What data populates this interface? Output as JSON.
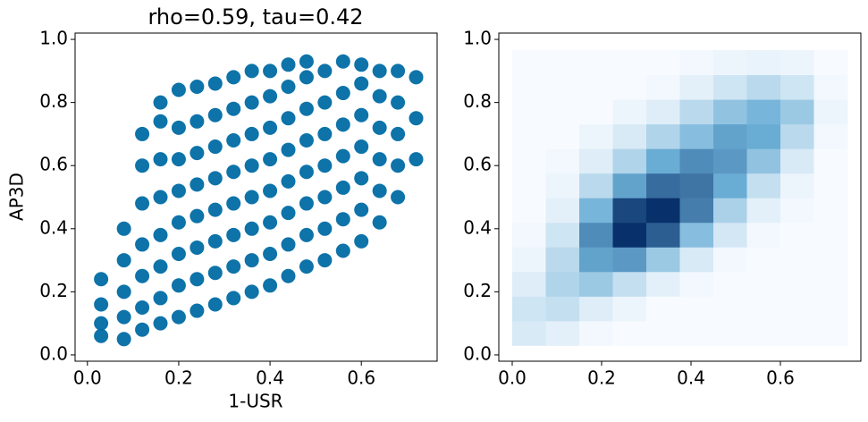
{
  "chart_data": [
    {
      "type": "scatter",
      "title": "rho=0.59, tau=0.42",
      "x_label": "1-USR",
      "y_label": "AP3D",
      "color": "#006ba4",
      "x": [
        0.03,
        0.03,
        0.03,
        0.03,
        0.08,
        0.08,
        0.08,
        0.08,
        0.08,
        0.12,
        0.12,
        0.12,
        0.12,
        0.12,
        0.12,
        0.12,
        0.16,
        0.16,
        0.16,
        0.16,
        0.16,
        0.16,
        0.16,
        0.16,
        0.2,
        0.2,
        0.2,
        0.2,
        0.2,
        0.2,
        0.2,
        0.2,
        0.24,
        0.24,
        0.24,
        0.24,
        0.24,
        0.24,
        0.24,
        0.24,
        0.28,
        0.28,
        0.28,
        0.28,
        0.28,
        0.28,
        0.28,
        0.28,
        0.32,
        0.32,
        0.32,
        0.32,
        0.32,
        0.32,
        0.32,
        0.32,
        0.36,
        0.36,
        0.36,
        0.36,
        0.36,
        0.36,
        0.36,
        0.36,
        0.4,
        0.4,
        0.4,
        0.4,
        0.4,
        0.4,
        0.4,
        0.4,
        0.44,
        0.44,
        0.44,
        0.44,
        0.44,
        0.44,
        0.44,
        0.44,
        0.48,
        0.48,
        0.48,
        0.48,
        0.48,
        0.48,
        0.48,
        0.48,
        0.52,
        0.52,
        0.52,
        0.52,
        0.52,
        0.52,
        0.52,
        0.56,
        0.56,
        0.56,
        0.56,
        0.56,
        0.56,
        0.56,
        0.6,
        0.6,
        0.6,
        0.6,
        0.6,
        0.6,
        0.6,
        0.64,
        0.64,
        0.64,
        0.64,
        0.64,
        0.64,
        0.68,
        0.68,
        0.68,
        0.68,
        0.68,
        0.72,
        0.72,
        0.72
      ],
      "y": [
        0.06,
        0.1,
        0.16,
        0.24,
        0.05,
        0.12,
        0.2,
        0.3,
        0.4,
        0.08,
        0.15,
        0.25,
        0.35,
        0.48,
        0.6,
        0.7,
        0.1,
        0.18,
        0.28,
        0.38,
        0.5,
        0.62,
        0.74,
        0.8,
        0.12,
        0.22,
        0.32,
        0.42,
        0.52,
        0.62,
        0.72,
        0.84,
        0.14,
        0.24,
        0.34,
        0.44,
        0.54,
        0.64,
        0.74,
        0.85,
        0.16,
        0.26,
        0.36,
        0.46,
        0.56,
        0.66,
        0.76,
        0.86,
        0.18,
        0.28,
        0.38,
        0.48,
        0.58,
        0.68,
        0.78,
        0.88,
        0.2,
        0.3,
        0.4,
        0.5,
        0.6,
        0.7,
        0.8,
        0.9,
        0.22,
        0.32,
        0.42,
        0.52,
        0.62,
        0.72,
        0.82,
        0.9,
        0.25,
        0.35,
        0.45,
        0.55,
        0.65,
        0.75,
        0.85,
        0.92,
        0.28,
        0.38,
        0.48,
        0.58,
        0.68,
        0.78,
        0.88,
        0.93,
        0.3,
        0.4,
        0.5,
        0.6,
        0.7,
        0.8,
        0.9,
        0.33,
        0.43,
        0.53,
        0.63,
        0.73,
        0.83,
        0.93,
        0.36,
        0.46,
        0.56,
        0.66,
        0.76,
        0.86,
        0.92,
        0.42,
        0.52,
        0.62,
        0.72,
        0.82,
        0.9,
        0.5,
        0.6,
        0.7,
        0.8,
        0.9,
        0.62,
        0.75,
        0.88
      ],
      "xlim": [
        -0.027,
        0.766
      ],
      "ylim": [
        -0.02,
        1.02
      ],
      "xticks": [
        {
          "value": 0,
          "label": "0.0"
        },
        0.2,
        0.4,
        0.6
      ],
      "yticks": [
        {
          "value": 0,
          "label": "0.0"
        },
        0.2,
        0.4,
        0.6,
        0.8,
        {
          "value": 1,
          "label": "1.0"
        }
      ]
    },
    {
      "type": "hexbin",
      "colors": [
        "#f7fbff",
        "#6baed6",
        "#08306b"
      ],
      "xbins": [
        0,
        0.075,
        0.15,
        0.225,
        0.3,
        0.375,
        0.45,
        0.525,
        0.6,
        0.675,
        0.75
      ],
      "ybins": [
        0.03,
        0.108,
        0.186,
        0.264,
        0.342,
        0.42,
        0.498,
        0.576,
        0.654,
        0.732,
        0.81,
        0.888,
        0.966
      ],
      "counts": [
        [
          6,
          4,
          1,
          0,
          0,
          0,
          0,
          0,
          0,
          0
        ],
        [
          8,
          10,
          5,
          2,
          0,
          0,
          0,
          0,
          0,
          0
        ],
        [
          5,
          14,
          18,
          10,
          4,
          1,
          0,
          0,
          0,
          0
        ],
        [
          2,
          12,
          30,
          32,
          18,
          6,
          1,
          0,
          0,
          0
        ],
        [
          1,
          8,
          35,
          55,
          45,
          22,
          7,
          1,
          0,
          0
        ],
        [
          0,
          4,
          25,
          50,
          55,
          38,
          15,
          4,
          1,
          0
        ],
        [
          0,
          2,
          12,
          30,
          42,
          40,
          28,
          10,
          2,
          0
        ],
        [
          0,
          1,
          5,
          14,
          28,
          35,
          32,
          20,
          6,
          0
        ],
        [
          0,
          0,
          2,
          6,
          14,
          22,
          30,
          28,
          12,
          1
        ],
        [
          0,
          0,
          0,
          2,
          5,
          12,
          20,
          25,
          18,
          2
        ],
        [
          0,
          0,
          0,
          0,
          1,
          4,
          8,
          12,
          8,
          1
        ],
        [
          0,
          0,
          0,
          0,
          0,
          1,
          2,
          3,
          2,
          0
        ]
      ],
      "xlim": [
        -0.03,
        0.78
      ],
      "ylim": [
        -0.02,
        1.02
      ],
      "xticks": [
        {
          "value": 0,
          "label": "0.0"
        },
        0.2,
        0.4,
        0.6
      ],
      "yticks": [
        {
          "value": 0,
          "label": "0.0"
        },
        0.2,
        0.4,
        0.6,
        0.8,
        {
          "value": 1,
          "label": "1.0"
        }
      ]
    }
  ]
}
